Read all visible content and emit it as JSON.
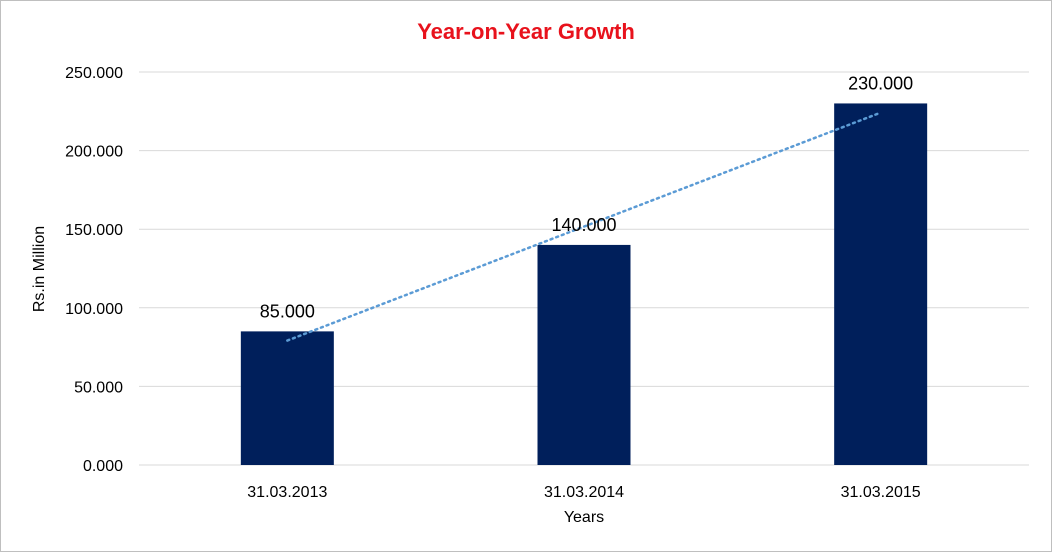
{
  "chart_data": {
    "type": "bar",
    "title": "Year-on-Year Growth",
    "xlabel": "Years",
    "ylabel": "Rs.in Million",
    "categories": [
      "31.03.2013",
      "31.03.2014",
      "31.03.2015"
    ],
    "values": [
      85,
      140,
      230
    ],
    "data_labels": [
      "85.000",
      "140.000",
      "230.000"
    ],
    "ylim": [
      0,
      250
    ],
    "yticks": [
      0,
      50,
      100,
      150,
      200,
      250
    ],
    "ytick_labels": [
      "0.000",
      "50.000",
      "100.000",
      "150.000",
      "200.000",
      "250.000"
    ],
    "grid": true,
    "trendline": "linear",
    "colors": {
      "bar": "#001f5b",
      "trendline": "#5b9bd5",
      "title": "#e8121c",
      "grid": "#d9d9d9"
    }
  }
}
